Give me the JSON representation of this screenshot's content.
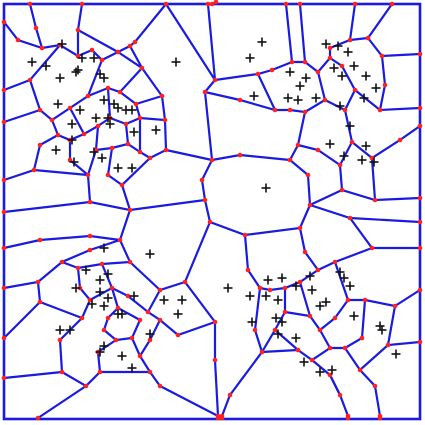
{
  "diagram": {
    "kind": "voronoi-diagram",
    "colors": {
      "background": "#ffffff",
      "edge": "#1a1ae0",
      "vertex": "#ff2020",
      "site_marker": "#111111"
    },
    "marker_names": {
      "site": "plus-marker",
      "vertex": "dot-marker"
    }
  }
}
